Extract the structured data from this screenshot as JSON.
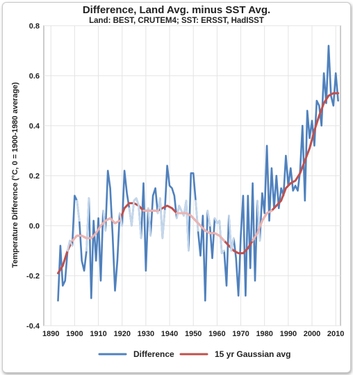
{
  "chart_data": {
    "type": "line",
    "title": "Difference, Land Avg. minus SST Avg.",
    "subtitle": "Land: BEST, CRUTEM4; SST: ERSST, HadISST",
    "xlabel": "",
    "ylabel": "Temperature Difference (°C, 0 = 1900-1980 average)",
    "xlim": [
      1887,
      2012
    ],
    "ylim": [
      -0.4,
      0.8
    ],
    "xticks": [
      "1890",
      "1900",
      "1910",
      "1920",
      "1930",
      "1940",
      "1950",
      "1960",
      "1970",
      "1980",
      "1990",
      "2000",
      "2010"
    ],
    "yticks": [
      "-0.4",
      "-0.2",
      "0.0",
      "0.2",
      "0.4",
      "0.6",
      "0.8"
    ],
    "grid": true,
    "legend_position": "bottom",
    "series": [
      {
        "name": "Difference",
        "color": "#4f81bd",
        "x": [
          1893,
          1894,
          1895,
          1896,
          1897,
          1898,
          1899,
          1900,
          1901,
          1902,
          1903,
          1904,
          1905,
          1906,
          1907,
          1908,
          1909,
          1910,
          1911,
          1912,
          1913,
          1914,
          1915,
          1916,
          1917,
          1918,
          1919,
          1920,
          1921,
          1922,
          1923,
          1924,
          1925,
          1926,
          1927,
          1928,
          1929,
          1930,
          1931,
          1932,
          1933,
          1934,
          1935,
          1936,
          1937,
          1938,
          1939,
          1940,
          1941,
          1942,
          1943,
          1944,
          1945,
          1946,
          1947,
          1948,
          1949,
          1950,
          1951,
          1952,
          1953,
          1954,
          1955,
          1956,
          1957,
          1958,
          1959,
          1960,
          1961,
          1962,
          1963,
          1964,
          1965,
          1966,
          1967,
          1968,
          1969,
          1970,
          1971,
          1972,
          1973,
          1974,
          1975,
          1976,
          1977,
          1978,
          1979,
          1980,
          1981,
          1982,
          1983,
          1984,
          1985,
          1986,
          1987,
          1988,
          1989,
          1990,
          1991,
          1992,
          1993,
          1994,
          1995,
          1996,
          1997,
          1998,
          1999,
          2000,
          2001,
          2002,
          2003,
          2004,
          2005,
          2006,
          2007,
          2008,
          2009,
          2010,
          2011
        ],
        "values": [
          -0.3,
          -0.08,
          -0.24,
          -0.22,
          -0.1,
          -0.06,
          -0.08,
          0.12,
          0.1,
          0.02,
          -0.14,
          -0.18,
          -0.1,
          0.11,
          -0.29,
          0.02,
          -0.14,
          0.03,
          -0.22,
          0.06,
          -0.02,
          0.22,
          0.15,
          -0.04,
          -0.26,
          -0.14,
          0.05,
          0.0,
          0.22,
          0.13,
          0.07,
          0.0,
          0.1,
          0.11,
          0.08,
          -0.05,
          0.17,
          -0.18,
          0.07,
          -0.04,
          0.12,
          0.15,
          0.05,
          0.11,
          -0.05,
          0.06,
          0.24,
          0.16,
          0.15,
          0.12,
          0.03,
          0.08,
          0.06,
          0.04,
          0.1,
          -0.1,
          0.21,
          0.21,
          0.1,
          -0.02,
          -0.12,
          0.04,
          -0.3,
          0.06,
          0.0,
          -0.13,
          0.03,
          0.01,
          0.02,
          -0.11,
          -0.1,
          -0.24,
          0.04,
          -0.1,
          -0.05,
          -0.13,
          -0.28,
          -0.04,
          0.12,
          -0.28,
          0.12,
          -0.17,
          0.17,
          -0.22,
          0.1,
          -0.06,
          0.13,
          0.05,
          0.32,
          0.02,
          0.23,
          0.07,
          0.2,
          0.07,
          0.15,
          0.12,
          0.28,
          0.16,
          0.23,
          0.14,
          0.16,
          0.14,
          0.22,
          0.4,
          0.1,
          0.46,
          0.35,
          0.42,
          0.32,
          0.5,
          0.48,
          0.4,
          0.61,
          0.49,
          0.72,
          0.52,
          0.48,
          0.61,
          0.5
        ]
      },
      {
        "name": "15 yr Gaussian avg",
        "color": "#c0504d",
        "x": [
          1893,
          1895,
          1897,
          1899,
          1901,
          1903,
          1905,
          1907,
          1909,
          1911,
          1913,
          1915,
          1917,
          1919,
          1921,
          1923,
          1925,
          1927,
          1929,
          1931,
          1933,
          1935,
          1937,
          1939,
          1941,
          1943,
          1945,
          1947,
          1949,
          1951,
          1953,
          1955,
          1957,
          1959,
          1961,
          1963,
          1965,
          1967,
          1969,
          1971,
          1973,
          1975,
          1977,
          1979,
          1981,
          1983,
          1985,
          1987,
          1989,
          1991,
          1993,
          1995,
          1997,
          1999,
          2001,
          2003,
          2005,
          2007,
          2009,
          2011
        ],
        "values": [
          -0.19,
          -0.16,
          -0.1,
          -0.06,
          -0.04,
          -0.04,
          -0.05,
          -0.05,
          -0.03,
          0.0,
          0.02,
          0.03,
          0.01,
          0.02,
          0.07,
          0.09,
          0.09,
          0.08,
          0.06,
          0.06,
          0.06,
          0.06,
          0.07,
          0.08,
          0.07,
          0.05,
          0.05,
          0.05,
          0.04,
          0.02,
          0.0,
          -0.02,
          -0.03,
          -0.03,
          -0.04,
          -0.06,
          -0.08,
          -0.1,
          -0.11,
          -0.11,
          -0.09,
          -0.06,
          -0.03,
          0.02,
          0.05,
          0.06,
          0.08,
          0.1,
          0.15,
          0.17,
          0.18,
          0.21,
          0.26,
          0.31,
          0.38,
          0.44,
          0.49,
          0.52,
          0.53,
          0.53
        ]
      }
    ]
  }
}
